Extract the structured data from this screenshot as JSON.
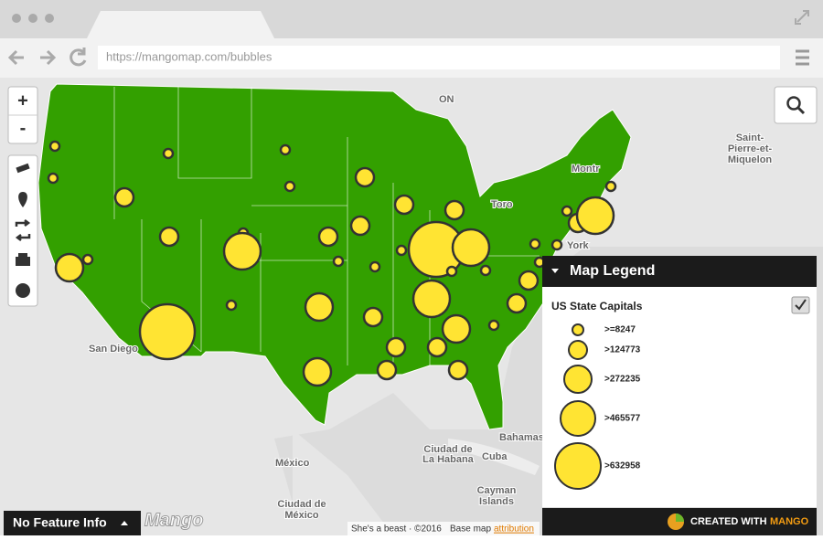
{
  "browser": {
    "url": "https://mangomap.com/bubbles"
  },
  "map_controls": {
    "zoom_in": "+",
    "zoom_out": "-"
  },
  "map_labels": {
    "saint_pierre": [
      "Saint-",
      "Pierre-et-",
      "Miquelon"
    ],
    "ontario": "ON",
    "san_diego": "San Diego",
    "bahamas": "Bahamas",
    "cuba": "Cuba",
    "mexico": "México",
    "mexico_city": [
      "Ciudad de",
      "México"
    ],
    "havana": [
      "Ciudad de",
      "La Habana"
    ],
    "cayman": [
      "Cayman",
      "Islands"
    ],
    "toronto": "Toro",
    "new_york": "York",
    "montreal": "Montr"
  },
  "legend": {
    "title": "Map Legend",
    "layer": "US State Capitals",
    "classes": [
      ">=8247",
      ">124773",
      ">272235",
      ">465577",
      ">632958"
    ]
  },
  "feature_info": "No Feature Info",
  "credit": {
    "prefix": "CREATED WITH",
    "brand": "MANGO"
  },
  "watermark": "Mango",
  "attribution": {
    "text": "She's a beast · ©2016",
    "base_map": "Base map",
    "link": "attribution"
  }
}
